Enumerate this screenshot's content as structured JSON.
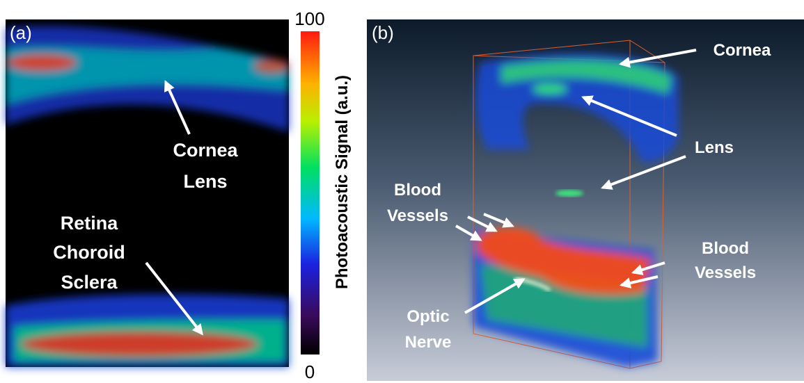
{
  "panels": [
    {
      "label": "(a)",
      "annotations": [
        {
          "lines": [
            "Cornea",
            "Lens"
          ]
        },
        {
          "lines": [
            "Retina",
            "Choroid",
            "Sclera"
          ]
        }
      ]
    },
    {
      "label": "(b)",
      "annotations": [
        {
          "lines": [
            "Cornea"
          ]
        },
        {
          "lines": [
            "Lens"
          ]
        },
        {
          "lines": [
            "Blood",
            "Vessels"
          ]
        },
        {
          "lines": [
            "Blood",
            "Vessels"
          ]
        },
        {
          "lines": [
            "Optic",
            "Nerve"
          ]
        }
      ]
    }
  ],
  "colorbar": {
    "title": "Photoacoustic Signal (a.u.)",
    "max": 100,
    "min": 0
  }
}
